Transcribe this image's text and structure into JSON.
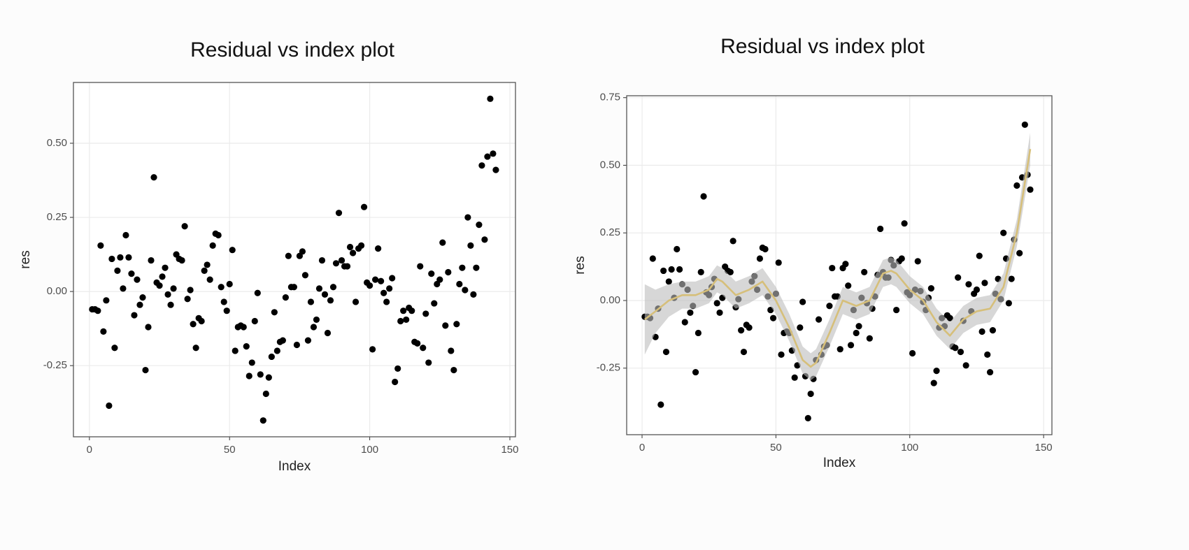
{
  "chart_data": [
    {
      "type": "scatter",
      "title": "Residual vs index plot",
      "x_label": "Index",
      "y_label": "res",
      "color": "#000000",
      "grid": true,
      "x": [
        1,
        2,
        3,
        4,
        5,
        6,
        7,
        8,
        9,
        10,
        11,
        12,
        13,
        14,
        15,
        16,
        17,
        18,
        19,
        20,
        21,
        22,
        23,
        24,
        25,
        26,
        27,
        28,
        29,
        30,
        31,
        32,
        33,
        34,
        35,
        36,
        37,
        38,
        39,
        40,
        41,
        42,
        43,
        44,
        45,
        46,
        47,
        48,
        49,
        50,
        51,
        52,
        53,
        54,
        55,
        56,
        57,
        58,
        59,
        60,
        61,
        62,
        63,
        64,
        65,
        66,
        67,
        68,
        69,
        70,
        71,
        72,
        73,
        74,
        75,
        76,
        77,
        78,
        79,
        80,
        81,
        82,
        83,
        84,
        85,
        86,
        87,
        88,
        89,
        90,
        91,
        92,
        93,
        94,
        95,
        96,
        97,
        98,
        99,
        100,
        101,
        102,
        103,
        104,
        105,
        106,
        107,
        108,
        109,
        110,
        111,
        112,
        113,
        114,
        115,
        116,
        117,
        118,
        119,
        120,
        121,
        122,
        123,
        124,
        125,
        126,
        127,
        128,
        129,
        130,
        131,
        132,
        133,
        134,
        135,
        136,
        137,
        138,
        139,
        140,
        141,
        142,
        143,
        144,
        145
      ],
      "values": [
        -0.06,
        -0.06,
        -0.065,
        0.155,
        -0.135,
        -0.03,
        -0.385,
        0.11,
        -0.19,
        0.07,
        0.115,
        0.01,
        0.19,
        0.115,
        0.06,
        -0.08,
        0.04,
        -0.045,
        -0.02,
        -0.265,
        -0.12,
        0.105,
        0.385,
        0.03,
        0.02,
        0.05,
        0.08,
        -0.01,
        -0.045,
        0.01,
        0.125,
        0.11,
        0.105,
        0.22,
        -0.025,
        0.005,
        -0.11,
        -0.19,
        -0.09,
        -0.1,
        0.07,
        0.09,
        0.04,
        0.155,
        0.195,
        0.19,
        0.015,
        -0.035,
        -0.065,
        0.025,
        0.14,
        -0.2,
        -0.12,
        -0.115,
        -0.12,
        -0.185,
        -0.285,
        -0.24,
        -0.1,
        -0.005,
        -0.28,
        -0.435,
        -0.345,
        -0.29,
        -0.22,
        -0.07,
        -0.2,
        -0.17,
        -0.165,
        -0.02,
        0.12,
        0.015,
        0.015,
        -0.18,
        0.12,
        0.135,
        0.055,
        -0.165,
        -0.035,
        -0.12,
        -0.095,
        0.01,
        0.105,
        -0.01,
        -0.14,
        -0.03,
        0.015,
        0.095,
        0.265,
        0.105,
        0.085,
        0.085,
        0.15,
        0.13,
        -0.035,
        0.145,
        0.155,
        0.285,
        0.03,
        0.02,
        -0.195,
        0.04,
        0.145,
        0.035,
        -0.005,
        -0.035,
        0.01,
        0.045,
        -0.305,
        -0.26,
        -0.1,
        -0.065,
        -0.095,
        -0.055,
        -0.065,
        -0.17,
        -0.175,
        0.085,
        -0.19,
        -0.075,
        -0.24,
        0.06,
        -0.04,
        0.025,
        0.04,
        0.165,
        -0.115,
        0.065,
        -0.2,
        -0.265,
        -0.11,
        0.025,
        0.08,
        0.005,
        0.25,
        0.155,
        -0.01,
        0.08,
        0.225,
        0.425,
        0.175,
        0.455,
        0.65,
        0.465,
        0.41
      ],
      "xlim": [
        -5.7,
        152
      ],
      "ylim": [
        -0.49,
        0.705
      ],
      "xticks": [
        0,
        50,
        100,
        150
      ],
      "yticks": [
        {
          "value": -0.25,
          "label": "-0.25"
        },
        {
          "value": 0,
          "label": "0.00"
        },
        {
          "value": 0.25,
          "label": "0.25"
        },
        {
          "value": 0.5,
          "label": "0.50"
        }
      ]
    },
    {
      "type": "scatter",
      "title": "Residual vs index plot",
      "x_label": "Index",
      "y_label": "res",
      "color": "#000000",
      "grid": true,
      "x": [
        1,
        2,
        3,
        4,
        5,
        6,
        7,
        8,
        9,
        10,
        11,
        12,
        13,
        14,
        15,
        16,
        17,
        18,
        19,
        20,
        21,
        22,
        23,
        24,
        25,
        26,
        27,
        28,
        29,
        30,
        31,
        32,
        33,
        34,
        35,
        36,
        37,
        38,
        39,
        40,
        41,
        42,
        43,
        44,
        45,
        46,
        47,
        48,
        49,
        50,
        51,
        52,
        53,
        54,
        55,
        56,
        57,
        58,
        59,
        60,
        61,
        62,
        63,
        64,
        65,
        66,
        67,
        68,
        69,
        70,
        71,
        72,
        73,
        74,
        75,
        76,
        77,
        78,
        79,
        80,
        81,
        82,
        83,
        84,
        85,
        86,
        87,
        88,
        89,
        90,
        91,
        92,
        93,
        94,
        95,
        96,
        97,
        98,
        99,
        100,
        101,
        102,
        103,
        104,
        105,
        106,
        107,
        108,
        109,
        110,
        111,
        112,
        113,
        114,
        115,
        116,
        117,
        118,
        119,
        120,
        121,
        122,
        123,
        124,
        125,
        126,
        127,
        128,
        129,
        130,
        131,
        132,
        133,
        134,
        135,
        136,
        137,
        138,
        139,
        140,
        141,
        142,
        143,
        144,
        145
      ],
      "values": [
        -0.06,
        -0.06,
        -0.065,
        0.155,
        -0.135,
        -0.03,
        -0.385,
        0.11,
        -0.19,
        0.07,
        0.115,
        0.01,
        0.19,
        0.115,
        0.06,
        -0.08,
        0.04,
        -0.045,
        -0.02,
        -0.265,
        -0.12,
        0.105,
        0.385,
        0.03,
        0.02,
        0.05,
        0.08,
        -0.01,
        -0.045,
        0.01,
        0.125,
        0.11,
        0.105,
        0.22,
        -0.025,
        0.005,
        -0.11,
        -0.19,
        -0.09,
        -0.1,
        0.07,
        0.09,
        0.04,
        0.155,
        0.195,
        0.19,
        0.015,
        -0.035,
        -0.065,
        0.025,
        0.14,
        -0.2,
        -0.12,
        -0.115,
        -0.12,
        -0.185,
        -0.285,
        -0.24,
        -0.1,
        -0.005,
        -0.28,
        -0.435,
        -0.345,
        -0.29,
        -0.22,
        -0.07,
        -0.2,
        -0.17,
        -0.165,
        -0.02,
        0.12,
        0.015,
        0.015,
        -0.18,
        0.12,
        0.135,
        0.055,
        -0.165,
        -0.035,
        -0.12,
        -0.095,
        0.01,
        0.105,
        -0.01,
        -0.14,
        -0.03,
        0.015,
        0.095,
        0.265,
        0.105,
        0.085,
        0.085,
        0.15,
        0.13,
        -0.035,
        0.145,
        0.155,
        0.285,
        0.03,
        0.02,
        -0.195,
        0.04,
        0.145,
        0.035,
        -0.005,
        -0.035,
        0.01,
        0.045,
        -0.305,
        -0.26,
        -0.1,
        -0.065,
        -0.095,
        -0.055,
        -0.065,
        -0.17,
        -0.175,
        0.085,
        -0.19,
        -0.075,
        -0.24,
        0.06,
        -0.04,
        0.025,
        0.04,
        0.165,
        -0.115,
        0.065,
        -0.2,
        -0.265,
        -0.11,
        0.025,
        0.08,
        0.005,
        0.25,
        0.155,
        -0.01,
        0.08,
        0.225,
        0.425,
        0.175,
        0.455,
        0.65,
        0.465,
        0.41
      ],
      "smooth": {
        "color": "#d6bf7a",
        "band_color": "#bdbdbd",
        "x": [
          1,
          5,
          10,
          15,
          20,
          25,
          28,
          30,
          35,
          40,
          45,
          50,
          55,
          60,
          63,
          65,
          70,
          75,
          80,
          85,
          90,
          93,
          95,
          100,
          105,
          110,
          115,
          120,
          125,
          130,
          135,
          140,
          145
        ],
        "values": [
          -0.07,
          -0.04,
          0,
          0.02,
          0.02,
          0.04,
          0.08,
          0.07,
          0.02,
          0.04,
          0.07,
          0,
          -0.1,
          -0.22,
          -0.245,
          -0.23,
          -0.12,
          0,
          -0.02,
          0,
          0.1,
          0.11,
          0.1,
          0.04,
          0,
          -0.08,
          -0.13,
          -0.07,
          -0.04,
          -0.03,
          0.05,
          0.25,
          0.56
        ],
        "upper": [
          0.06,
          0.04,
          0.06,
          0.07,
          0.07,
          0.09,
          0.13,
          0.12,
          0.07,
          0.09,
          0.12,
          0.05,
          -0.05,
          -0.17,
          -0.195,
          -0.18,
          -0.07,
          0.05,
          0.03,
          0.05,
          0.15,
          0.16,
          0.15,
          0.09,
          0.05,
          -0.03,
          -0.08,
          -0.02,
          0.01,
          0.02,
          0.1,
          0.3,
          0.62
        ],
        "lower": [
          -0.2,
          -0.12,
          -0.06,
          -0.03,
          -0.03,
          -0.01,
          0.03,
          0.02,
          -0.03,
          -0.01,
          0.02,
          -0.05,
          -0.15,
          -0.27,
          -0.295,
          -0.28,
          -0.17,
          -0.05,
          -0.07,
          -0.05,
          0.05,
          0.06,
          0.05,
          -0.01,
          -0.05,
          -0.13,
          -0.18,
          -0.12,
          -0.09,
          -0.08,
          0,
          0.2,
          0.5
        ]
      },
      "xlim": [
        -5.75,
        153.1
      ],
      "ylim": [
        -0.496,
        0.757
      ],
      "xticks": [
        0,
        50,
        100,
        150
      ],
      "yticks": [
        {
          "value": -0.25,
          "label": "-0.25"
        },
        {
          "value": 0,
          "label": "0.00"
        },
        {
          "value": 0.25,
          "label": "0.25"
        },
        {
          "value": 0.5,
          "label": "0.50"
        },
        {
          "value": 0.75,
          "label": "0.75"
        }
      ]
    }
  ]
}
